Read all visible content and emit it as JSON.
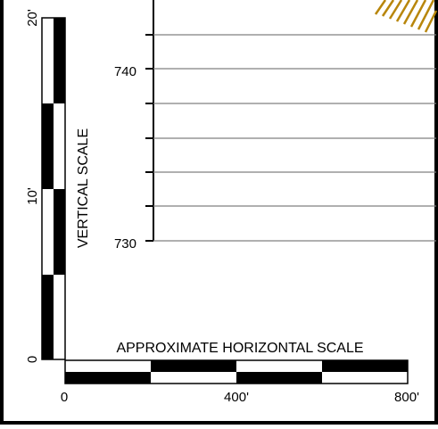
{
  "vertical_scale": {
    "title": "VERTICAL SCALE",
    "tick_labels": [
      "0",
      "10'",
      "20'"
    ],
    "unit": "ft",
    "max_value": 20
  },
  "horizontal_scale": {
    "title": "APPROXIMATE HORIZONTAL SCALE",
    "tick_labels": [
      "0",
      "400'",
      "800'"
    ],
    "unit": "ft",
    "max_value": 800
  },
  "elevation_axis": {
    "tick_labels": [
      "740",
      "730"
    ],
    "gridline_interval": 2
  },
  "colors": {
    "frame": "#000000",
    "gridline": "#808080",
    "hatch": "#b8860b"
  }
}
